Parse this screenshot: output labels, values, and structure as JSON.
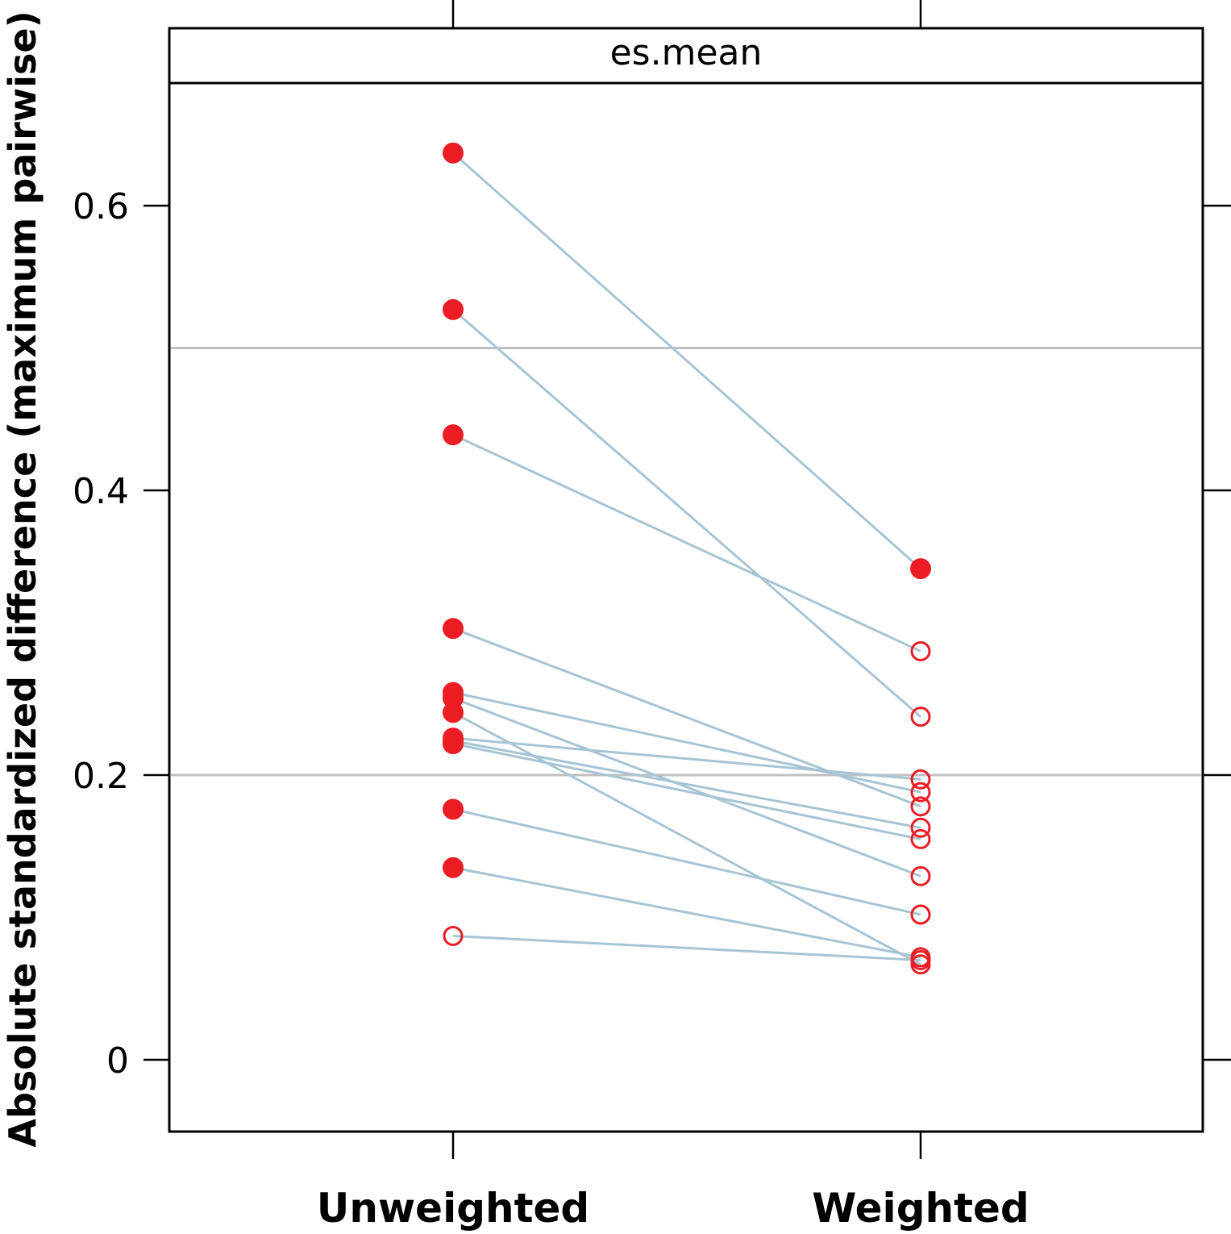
{
  "chart_data": {
    "type": "line",
    "subtype": "paired-dotplot",
    "strip_title": "es.mean",
    "title": "",
    "xlabel": "",
    "ylabel": "Absolute standardized difference (maximum pairwise)",
    "categories": [
      "Unweighted",
      "Weighted"
    ],
    "ylim": [
      -0.05,
      0.69
    ],
    "yticks": [
      0,
      0.2,
      0.4,
      0.6
    ],
    "ytick_labels": [
      "0",
      "0.2",
      "0.4",
      "0.6"
    ],
    "reference_lines": [
      0.2,
      0.5
    ],
    "grid": false,
    "legend": "none",
    "marker_color": "#ec1c24",
    "line_color": "#a7c4d4",
    "reference_line_color": "#c0c0c0",
    "pairs": [
      {
        "unweighted": 0.637,
        "weighted": 0.345,
        "unweighted_filled": true,
        "weighted_filled": true
      },
      {
        "unweighted": 0.527,
        "weighted": 0.241,
        "unweighted_filled": true,
        "weighted_filled": false
      },
      {
        "unweighted": 0.439,
        "weighted": 0.287,
        "unweighted_filled": true,
        "weighted_filled": false
      },
      {
        "unweighted": 0.303,
        "weighted": 0.178,
        "unweighted_filled": true,
        "weighted_filled": false
      },
      {
        "unweighted": 0.258,
        "weighted": 0.188,
        "unweighted_filled": true,
        "weighted_filled": false
      },
      {
        "unweighted": 0.254,
        "weighted": 0.129,
        "unweighted_filled": true,
        "weighted_filled": false
      },
      {
        "unweighted": 0.244,
        "weighted": 0.067,
        "unweighted_filled": true,
        "weighted_filled": false
      },
      {
        "unweighted": 0.226,
        "weighted": 0.197,
        "unweighted_filled": true,
        "weighted_filled": false
      },
      {
        "unweighted": 0.224,
        "weighted": 0.163,
        "unweighted_filled": true,
        "weighted_filled": false
      },
      {
        "unweighted": 0.222,
        "weighted": 0.155,
        "unweighted_filled": true,
        "weighted_filled": false
      },
      {
        "unweighted": 0.176,
        "weighted": 0.102,
        "unweighted_filled": true,
        "weighted_filled": false
      },
      {
        "unweighted": 0.135,
        "weighted": 0.072,
        "unweighted_filled": true,
        "weighted_filled": false
      },
      {
        "unweighted": 0.087,
        "weighted": 0.07,
        "unweighted_filled": false,
        "weighted_filled": false
      }
    ]
  }
}
